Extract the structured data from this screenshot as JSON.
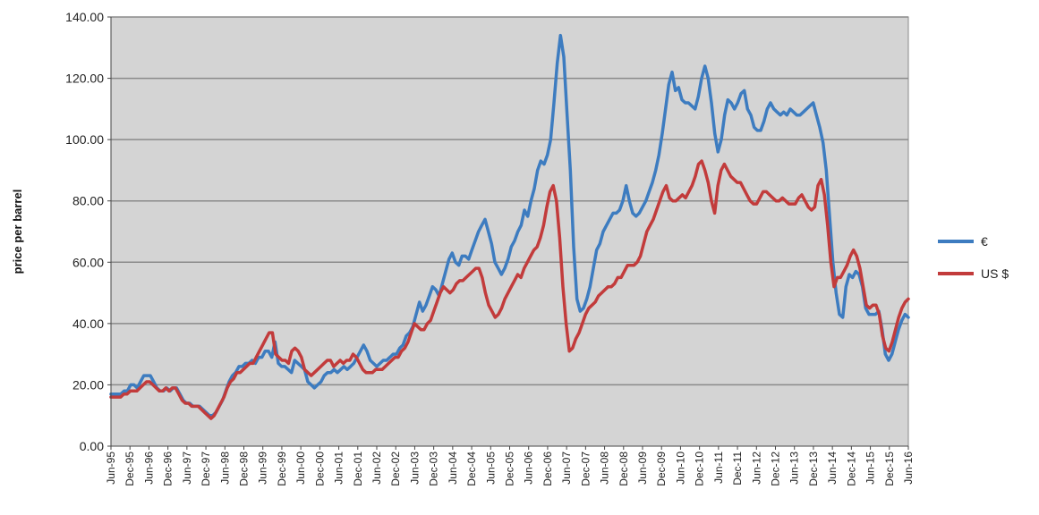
{
  "chart_data": {
    "type": "line",
    "ylabel": "price per barrel",
    "xlabel": "",
    "ylim": [
      0,
      140
    ],
    "yticks": [
      "0.00",
      "20.00",
      "40.00",
      "60.00",
      "80.00",
      "100.00",
      "120.00",
      "140.00"
    ],
    "xticks": [
      "Jun-95",
      "Dec-95",
      "Jun-96",
      "Dec-96",
      "Jun-97",
      "Dec-97",
      "Jun-98",
      "Dec-98",
      "Jun-99",
      "Dec-99",
      "Jun-00",
      "Dec-00",
      "Jun-01",
      "Dec-01",
      "Jun-02",
      "Dec-02",
      "Jun-03",
      "Dec-03",
      "Jun-04",
      "Dec-04",
      "Jun-05",
      "Dec-05",
      "Jun-06",
      "Dec-06",
      "Jun-07",
      "Dec-07",
      "Jun-08",
      "Dec-08",
      "Jun-09",
      "Dec-09",
      "Jun-10",
      "Dec-10",
      "Jun-11",
      "Dec-11",
      "Jun-12",
      "Dec-12",
      "Jun-13",
      "Dec-13",
      "Jun-14",
      "Dec-14",
      "Jun-15",
      "Dec-15",
      "Jun-16"
    ],
    "grid": true,
    "legend_position": "right",
    "background_color": "#d4d4d4",
    "series": [
      {
        "name": "€",
        "color": "#3d7cc0",
        "values": [
          17,
          17,
          17,
          17,
          18,
          18,
          20,
          20,
          19,
          21,
          23,
          23,
          23,
          21,
          19,
          18,
          18,
          19,
          18,
          19,
          19,
          17,
          15,
          14,
          14,
          13,
          13,
          13,
          12,
          11,
          10,
          10,
          11,
          13,
          15,
          18,
          21,
          23,
          24,
          26,
          26,
          27,
          27,
          28,
          27,
          29,
          29,
          31,
          31,
          29,
          34,
          27,
          26,
          26,
          25,
          24,
          28,
          27,
          26,
          25,
          21,
          20,
          19,
          20,
          21,
          23,
          24,
          24,
          25,
          24,
          25,
          26,
          25,
          26,
          27,
          29,
          31,
          33,
          31,
          28,
          27,
          26,
          27,
          28,
          28,
          29,
          30,
          30,
          32,
          33,
          36,
          37,
          39,
          43,
          47,
          44,
          46,
          49,
          52,
          51,
          49,
          53,
          57,
          61,
          63,
          60,
          59,
          62,
          62,
          61,
          64,
          67,
          70,
          72,
          74,
          70,
          66,
          60,
          58,
          56,
          58,
          61,
          65,
          67,
          70,
          72,
          77,
          75,
          80,
          84,
          90,
          93,
          92,
          95,
          100,
          112,
          125,
          134,
          127,
          108,
          90,
          65,
          48,
          44,
          45,
          48,
          52,
          58,
          64,
          66,
          70,
          72,
          74,
          76,
          76,
          77,
          80,
          85,
          80,
          76,
          75,
          76,
          78,
          80,
          83,
          86,
          90,
          95,
          102,
          110,
          118,
          122,
          116,
          117,
          113,
          112,
          112,
          111,
          110,
          114,
          120,
          124,
          120,
          112,
          102,
          96,
          100,
          108,
          113,
          112,
          110,
          112,
          115,
          116,
          110,
          108,
          104,
          103,
          103,
          106,
          110,
          112,
          110,
          109,
          108,
          109,
          108,
          110,
          109,
          108,
          108,
          109,
          110,
          111,
          112,
          108,
          104,
          99,
          90,
          75,
          60,
          50,
          43,
          42,
          52,
          56,
          55,
          57,
          56,
          52,
          45,
          43,
          43,
          43,
          44,
          38,
          30,
          28,
          30,
          34,
          38,
          41,
          43,
          42
        ]
      },
      {
        "name": "US $",
        "color": "#c23b3b",
        "values": [
          16,
          16,
          16,
          16,
          17,
          17,
          18,
          18,
          18,
          19,
          20,
          21,
          21,
          20,
          19,
          18,
          18,
          19,
          18,
          19,
          19,
          17,
          15,
          14,
          14,
          13,
          13,
          13,
          12,
          11,
          10,
          9,
          10,
          12,
          14,
          16,
          19,
          21,
          22,
          24,
          24,
          25,
          26,
          27,
          27,
          29,
          31,
          33,
          35,
          37,
          37,
          30,
          29,
          28,
          28,
          27,
          31,
          32,
          31,
          29,
          25,
          24,
          23,
          24,
          25,
          26,
          27,
          28,
          28,
          26,
          27,
          28,
          27,
          28,
          28,
          30,
          29,
          27,
          25,
          24,
          24,
          24,
          25,
          25,
          25,
          26,
          27,
          28,
          29,
          29,
          31,
          32,
          34,
          37,
          40,
          39,
          38,
          38,
          40,
          41,
          44,
          47,
          50,
          52,
          51,
          50,
          51,
          53,
          54,
          54,
          55,
          56,
          57,
          58,
          58,
          55,
          50,
          46,
          44,
          42,
          43,
          45,
          48,
          50,
          52,
          54,
          56,
          55,
          58,
          60,
          62,
          64,
          65,
          68,
          72,
          78,
          83,
          85,
          80,
          68,
          52,
          40,
          31,
          32,
          35,
          37,
          40,
          43,
          45,
          46,
          47,
          49,
          50,
          51,
          52,
          52,
          53,
          55,
          55,
          57,
          59,
          59,
          59,
          60,
          62,
          66,
          70,
          72,
          74,
          77,
          80,
          83,
          85,
          81,
          80,
          80,
          81,
          82,
          81,
          83,
          85,
          88,
          92,
          93,
          90,
          86,
          80,
          76,
          85,
          90,
          92,
          90,
          88,
          87,
          86,
          86,
          84,
          82,
          80,
          79,
          79,
          81,
          83,
          83,
          82,
          81,
          80,
          80,
          81,
          80,
          79,
          79,
          79,
          81,
          82,
          80,
          78,
          77,
          78,
          85,
          87,
          82,
          72,
          60,
          52,
          55,
          55,
          57,
          59,
          62,
          64,
          62,
          58,
          52,
          46,
          45,
          46,
          46,
          43,
          36,
          32,
          31,
          34,
          38,
          42,
          45,
          47,
          48
        ]
      }
    ]
  }
}
